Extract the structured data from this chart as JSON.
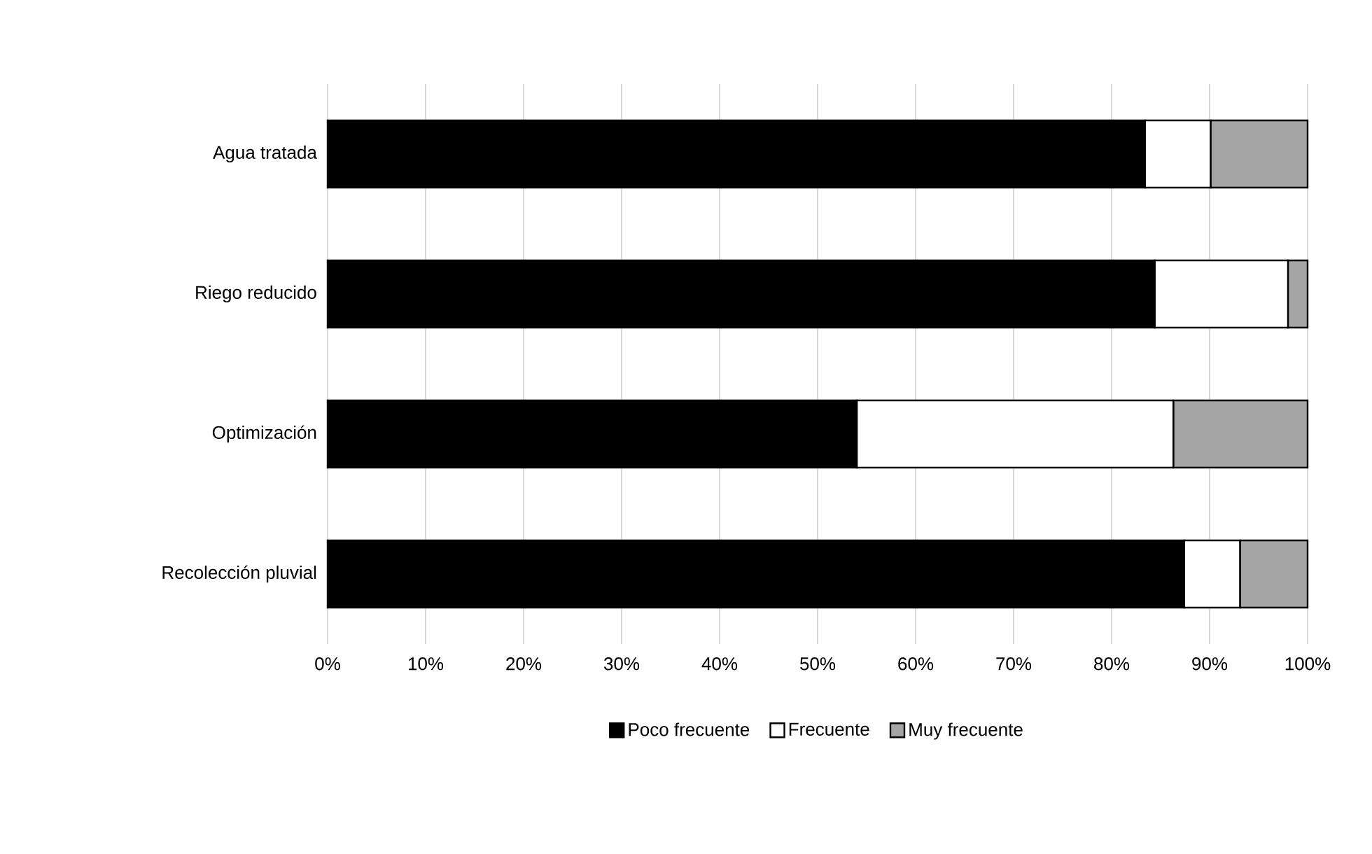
{
  "chart_data": {
    "type": "bar",
    "orientation": "horizontal",
    "stacked": true,
    "categories": [
      "Agua tratada",
      "Riego reducido",
      "Optimización",
      "Recolección pluvial"
    ],
    "series": [
      {
        "name": "Poco frecuente",
        "color": "#000000",
        "values": [
          83.4,
          84.4,
          54.0,
          87.4
        ]
      },
      {
        "name": "Frecuente",
        "color": "#ffffff",
        "values": [
          6.7,
          13.6,
          32.3,
          5.7
        ]
      },
      {
        "name": "Muy frecuente",
        "color": "#a5a5a5",
        "values": [
          9.9,
          2.0,
          13.7,
          6.9
        ]
      }
    ],
    "xlim": [
      0,
      100
    ],
    "xticks": [
      {
        "value": 0,
        "label": "0%"
      },
      {
        "value": 10,
        "label": "10%"
      },
      {
        "value": 20,
        "label": "20%"
      },
      {
        "value": 30,
        "label": "30%"
      },
      {
        "value": 40,
        "label": "40%"
      },
      {
        "value": 50,
        "label": "50%"
      },
      {
        "value": 60,
        "label": "60%"
      },
      {
        "value": 70,
        "label": "70%"
      },
      {
        "value": 80,
        "label": "80%"
      },
      {
        "value": 90,
        "label": "90%"
      },
      {
        "value": 100,
        "label": "100%"
      }
    ],
    "grid": "x",
    "legend": "bottom"
  }
}
